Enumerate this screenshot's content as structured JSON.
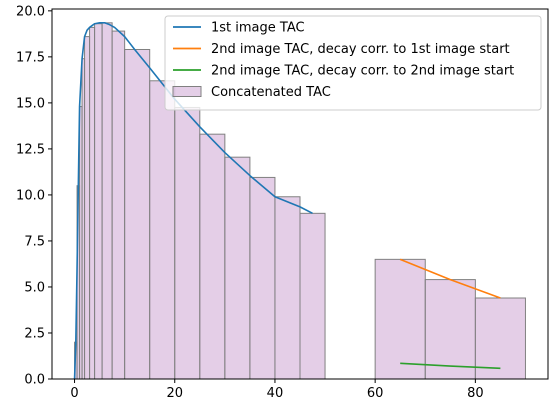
{
  "chart_data": {
    "type": "bar",
    "title": "",
    "xlabel": "",
    "ylabel": "",
    "xlim": [
      -4.5,
      94.5
    ],
    "ylim": [
      0,
      20.1
    ],
    "xticks": [
      0,
      20,
      40,
      60,
      80
    ],
    "yticks": [
      0.0,
      2.5,
      5.0,
      7.5,
      10.0,
      12.5,
      15.0,
      17.5,
      20.0
    ],
    "ytick_labels": [
      "0.0",
      "2.5",
      "5.0",
      "7.5",
      "10.0",
      "12.5",
      "15.0",
      "17.5",
      "20.0"
    ],
    "grid": false,
    "legend_position": "top-right",
    "legend_entries": [
      "1st image TAC",
      "2nd image TAC, decay corr. to 1st image start",
      "2nd image TAC, decay corr. to 2nd image start",
      "Concatenated TAC"
    ],
    "bars": {
      "name": "Concatenated TAC",
      "color": "#c493c9",
      "edgecolor": "#808080",
      "intervals": [
        {
          "start": 0.0,
          "end": 0.5,
          "value": 2.0
        },
        {
          "start": 0.5,
          "end": 1.0,
          "value": 10.5
        },
        {
          "start": 1.0,
          "end": 1.5,
          "value": 14.8
        },
        {
          "start": 1.5,
          "end": 2.0,
          "value": 17.4
        },
        {
          "start": 2.0,
          "end": 3.0,
          "value": 18.6
        },
        {
          "start": 3.0,
          "end": 4.0,
          "value": 19.1
        },
        {
          "start": 4.0,
          "end": 5.5,
          "value": 19.3
        },
        {
          "start": 5.5,
          "end": 7.5,
          "value": 19.35
        },
        {
          "start": 7.5,
          "end": 10.0,
          "value": 18.9
        },
        {
          "start": 10.0,
          "end": 15.0,
          "value": 17.9
        },
        {
          "start": 15.0,
          "end": 20.0,
          "value": 16.2
        },
        {
          "start": 20.0,
          "end": 25.0,
          "value": 14.75
        },
        {
          "start": 25.0,
          "end": 30.0,
          "value": 13.3
        },
        {
          "start": 30.0,
          "end": 35.0,
          "value": 12.05
        },
        {
          "start": 35.0,
          "end": 40.0,
          "value": 10.95
        },
        {
          "start": 40.0,
          "end": 45.0,
          "value": 9.9
        },
        {
          "start": 45.0,
          "end": 50.0,
          "value": 9.0
        },
        {
          "start": 60.0,
          "end": 70.0,
          "value": 6.5
        },
        {
          "start": 70.0,
          "end": 80.0,
          "value": 5.4
        },
        {
          "start": 80.0,
          "end": 90.0,
          "value": 4.4
        }
      ]
    },
    "series": [
      {
        "name": "1st image TAC",
        "color": "#1f77b4",
        "x": [
          0,
          0.25,
          0.5,
          0.75,
          1.0,
          1.5,
          2.0,
          2.5,
          3.0,
          3.5,
          4.0,
          5.0,
          6.0,
          7.0,
          8.0,
          10.0,
          12.0,
          15.0,
          20.0,
          25.0,
          30.0,
          35.0,
          40.0,
          45.0,
          47.5
        ],
        "values": [
          0,
          2.0,
          6.0,
          10.4,
          14.8,
          17.4,
          18.6,
          18.95,
          19.1,
          19.2,
          19.3,
          19.35,
          19.35,
          19.25,
          19.1,
          18.6,
          17.9,
          16.9,
          15.2,
          13.7,
          12.3,
          11.05,
          9.9,
          9.35,
          9.0
        ]
      },
      {
        "name": "2nd image TAC, decay corr. to 1st image start",
        "color": "#ff7f0e",
        "x": [
          65,
          75,
          85
        ],
        "values": [
          6.5,
          5.4,
          4.4
        ]
      },
      {
        "name": "2nd image TAC, decay corr. to 2nd image start",
        "color": "#2ca02c",
        "x": [
          65,
          75,
          85
        ],
        "values": [
          0.85,
          0.7,
          0.58
        ]
      }
    ]
  }
}
